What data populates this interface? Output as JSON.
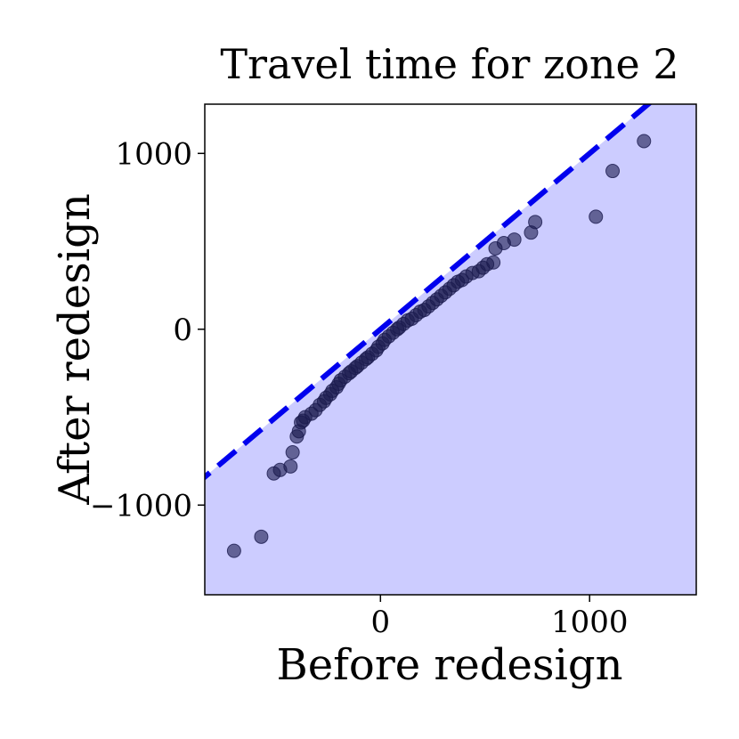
{
  "chart_data": {
    "type": "scatter",
    "title": "Travel time for zone 2",
    "xlabel": "Before redesign",
    "ylabel": "After redesign",
    "xlim": [
      -840,
      1510
    ],
    "ylim": [
      -1510,
      1280
    ],
    "xticks": [
      0,
      1000
    ],
    "xtick_labels": [
      "0",
      "1000"
    ],
    "yticks": [
      -1000,
      0,
      1000
    ],
    "ytick_labels": [
      "−1000",
      "0",
      "1000"
    ],
    "grid": false,
    "legend": "none",
    "reference_line": {
      "type": "identity",
      "style": "dashed",
      "color": "#0000ee"
    },
    "shaded_region": {
      "side": "below-identity",
      "color": "#ccccff"
    },
    "marker_color": "#1a1a4e",
    "series": [
      {
        "points": [
          [
            -700,
            -1260
          ],
          [
            -570,
            -1180
          ],
          [
            -510,
            -820
          ],
          [
            -480,
            -800
          ],
          [
            -430,
            -780
          ],
          [
            -420,
            -700
          ],
          [
            -400,
            -610
          ],
          [
            -390,
            -580
          ],
          [
            -380,
            -530
          ],
          [
            -370,
            -520
          ],
          [
            -360,
            -500
          ],
          [
            -330,
            -480
          ],
          [
            -310,
            -460
          ],
          [
            -290,
            -430
          ],
          [
            -270,
            -410
          ],
          [
            -260,
            -390
          ],
          [
            -240,
            -370
          ],
          [
            -230,
            -350
          ],
          [
            -210,
            -330
          ],
          [
            -200,
            -310
          ],
          [
            -190,
            -290
          ],
          [
            -170,
            -270
          ],
          [
            -150,
            -250
          ],
          [
            -140,
            -240
          ],
          [
            -120,
            -220
          ],
          [
            -110,
            -210
          ],
          [
            -90,
            -190
          ],
          [
            -70,
            -170
          ],
          [
            -60,
            -160
          ],
          [
            -40,
            -140
          ],
          [
            -20,
            -120
          ],
          [
            -10,
            -100
          ],
          [
            10,
            -80
          ],
          [
            20,
            -60
          ],
          [
            40,
            -40
          ],
          [
            60,
            -20
          ],
          [
            80,
            0
          ],
          [
            90,
            10
          ],
          [
            110,
            30
          ],
          [
            130,
            50
          ],
          [
            150,
            60
          ],
          [
            170,
            80
          ],
          [
            190,
            100
          ],
          [
            210,
            110
          ],
          [
            230,
            130
          ],
          [
            250,
            150
          ],
          [
            270,
            170
          ],
          [
            290,
            190
          ],
          [
            310,
            210
          ],
          [
            330,
            230
          ],
          [
            350,
            250
          ],
          [
            370,
            270
          ],
          [
            390,
            280
          ],
          [
            410,
            300
          ],
          [
            440,
            320
          ],
          [
            470,
            330
          ],
          [
            490,
            350
          ],
          [
            510,
            370
          ],
          [
            540,
            380
          ],
          [
            550,
            460
          ],
          [
            590,
            490
          ],
          [
            640,
            510
          ],
          [
            720,
            550
          ],
          [
            740,
            610
          ],
          [
            1030,
            640
          ],
          [
            1110,
            900
          ],
          [
            1260,
            1070
          ]
        ]
      }
    ]
  }
}
